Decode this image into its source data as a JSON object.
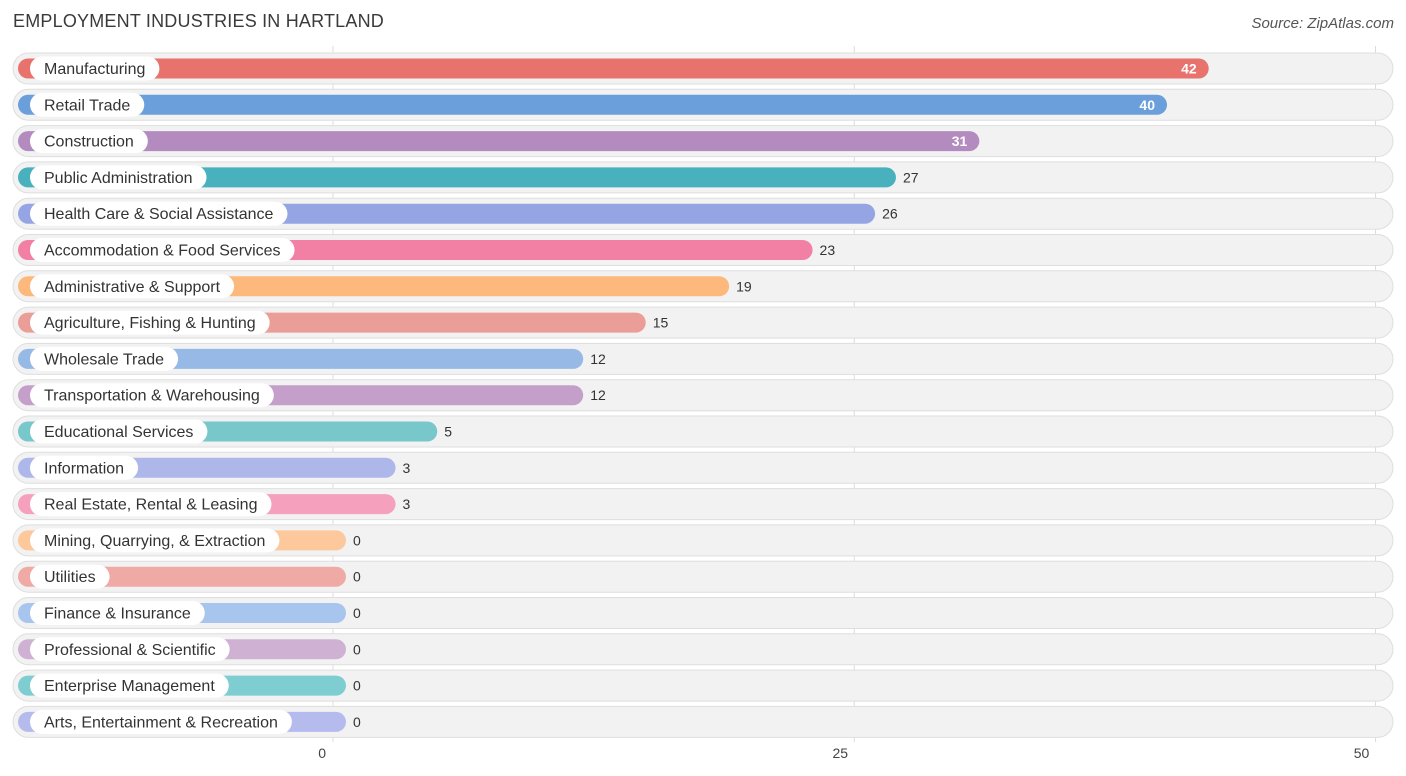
{
  "header": {
    "title": "EMPLOYMENT INDUSTRIES IN HARTLAND",
    "source": "Source: ZipAtlas.com"
  },
  "chart_data": {
    "type": "bar",
    "orientation": "horizontal",
    "title": "EMPLOYMENT INDUSTRIES IN HARTLAND",
    "xlim": [
      0,
      50
    ],
    "xticks": [
      0,
      25,
      50
    ],
    "grid": true,
    "categories": [
      "Manufacturing",
      "Retail Trade",
      "Construction",
      "Public Administration",
      "Health Care & Social Assistance",
      "Accommodation & Food Services",
      "Administrative & Support",
      "Agriculture, Fishing & Hunting",
      "Wholesale Trade",
      "Transportation & Warehousing",
      "Educational Services",
      "Information",
      "Real Estate, Rental & Leasing",
      "Mining, Quarrying, & Extraction",
      "Utilities",
      "Finance & Insurance",
      "Professional & Scientific",
      "Enterprise Management",
      "Arts, Entertainment & Recreation"
    ],
    "values": [
      42,
      40,
      31,
      27,
      26,
      23,
      19,
      15,
      12,
      12,
      5,
      3,
      3,
      0,
      0,
      0,
      0,
      0,
      0
    ],
    "colors": [
      "#e8726c",
      "#6a9fdb",
      "#b48bbf",
      "#48b1bd",
      "#95a5e3",
      "#f27fa4",
      "#fdb97b",
      "#eb9d98",
      "#97b9e6",
      "#c49fca",
      "#78c7ca",
      "#adb7ea",
      "#f5a1bd",
      "#fec89d",
      "#f0aaa6",
      "#a8c5ee",
      "#cfb1d3",
      "#7ecdd1",
      "#b5bced"
    ]
  }
}
